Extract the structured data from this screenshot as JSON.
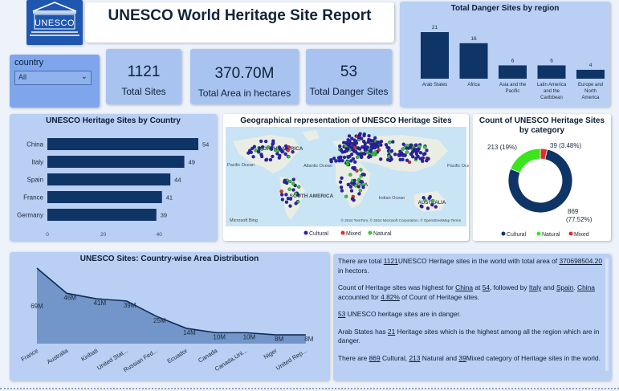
{
  "header": {
    "title": "UNESCO World Heritage Site Report",
    "logo_text": "UNESCO"
  },
  "filter": {
    "label": "country",
    "value": "All"
  },
  "kpis": [
    {
      "value": "1121",
      "label": "Total Sites"
    },
    {
      "value": "370.70M",
      "label": "Total Area in hectares"
    },
    {
      "value": "53",
      "label": "Total Danger Sites"
    }
  ],
  "danger_by_region": {
    "title": "Total Danger Sites by region",
    "categories": [
      "Arab States",
      "Africa",
      "Asia and the Pacific",
      "Latin America and the Caribbean",
      "Europe and North America"
    ],
    "cat_lines": [
      [
        "Arab States"
      ],
      [
        "Africa"
      ],
      [
        "Asia and the",
        "Pacific"
      ],
      [
        "Latin America",
        "and the",
        "Caribbean"
      ],
      [
        "Europe and",
        "North",
        "America"
      ]
    ],
    "values": [
      21,
      16,
      6,
      6,
      4
    ]
  },
  "by_country": {
    "title": "UNESCO Heritage Sites by Country",
    "categories": [
      "China",
      "Italy",
      "Spain",
      "France",
      "Germany"
    ],
    "values": [
      54,
      49,
      44,
      41,
      39
    ],
    "ticks": [
      "0",
      "20",
      "40"
    ]
  },
  "map": {
    "title": "Geographical representation of UNESCO Heritage Sites",
    "labels": [
      "NORTH AMERICA",
      "ASIA",
      "Pacific Ocean",
      "Atlantic Ocean",
      "SOUTH AMERICA",
      "AFRICA",
      "Indian Ocean",
      "AUSTRALIA",
      "Pacific Ocean"
    ],
    "attribution": "© 2024 TomTom, © 2024 Microsoft Corporation, © OpenStreetMap  Terms",
    "brand": "Microsoft Bing",
    "legend": [
      "Cultural",
      "Mixed",
      "Natural"
    ],
    "legend_colors": [
      "#2a1fb4",
      "#e8282b",
      "#2fce2f"
    ]
  },
  "by_category": {
    "title": "Count of UNESCO Heritage Sites by category",
    "slices": [
      {
        "name": "Cultural",
        "value": 869,
        "label": "869",
        "pct": "(77.52%)",
        "color": "#0f3466"
      },
      {
        "name": "Natural",
        "value": 213,
        "label": "213 (19%)",
        "color": "#39e61c"
      },
      {
        "name": "Mixed",
        "value": 39,
        "label": "39 (3.48%)",
        "color": "#e8282b"
      }
    ],
    "legend": [
      "Cultural",
      "Natural",
      "Mixed"
    ]
  },
  "area_dist": {
    "title": "UNESCO Sites: Country-wise Area Distribution",
    "categories": [
      "France",
      "Australia",
      "Kiribati",
      "United Stat...",
      "Russian Fed...",
      "Ecuador",
      "Canada",
      "Canada,Uni...",
      "Niger",
      "United Rep..."
    ],
    "values": [
      69,
      46,
      41,
      39,
      25,
      14,
      10,
      10,
      8,
      8
    ],
    "labels": [
      "69M",
      "46M",
      "41M",
      "39M",
      "25M",
      "14M",
      "10M",
      "10M",
      "8M",
      "8M"
    ],
    "unit": "M"
  },
  "insights": [
    "There are total 1121UNESCO Heritage sites in the world with total area of 370698504.20 in hectors.",
    "Count of Heritage sites was highest for China at 54, followed by Italy and Spain. China accounted for 4.82% of Count of Heritage sites.",
    "53 UNESCO heritage sites are in danger.",
    "Arab States has 21 Heritage sites which is the highest  among all the region which are in danger.",
    "There are 869 Cultural, 213 Natural and 39Mixed category of Heritage sites in the world."
  ],
  "chart_data": [
    {
      "type": "bar",
      "title": "Total Danger Sites by region",
      "categories": [
        "Arab States",
        "Africa",
        "Asia and the Pacific",
        "Latin America and the Caribbean",
        "Europe and North America"
      ],
      "values": [
        21,
        16,
        6,
        6,
        4
      ]
    },
    {
      "type": "bar",
      "title": "UNESCO Heritage Sites by Country",
      "categories": [
        "China",
        "Italy",
        "Spain",
        "France",
        "Germany"
      ],
      "values": [
        54,
        49,
        44,
        41,
        39
      ],
      "xlim": [
        0,
        54
      ]
    },
    {
      "type": "pie",
      "title": "Count of UNESCO Heritage Sites by category",
      "categories": [
        "Cultural",
        "Natural",
        "Mixed"
      ],
      "values": [
        869,
        213,
        39
      ]
    },
    {
      "type": "area",
      "title": "UNESCO Sites: Country-wise Area Distribution",
      "categories": [
        "France",
        "Australia",
        "Kiribati",
        "United Stat...",
        "Russian Fed...",
        "Ecuador",
        "Canada",
        "Canada,Uni...",
        "Niger",
        "United Rep..."
      ],
      "values": [
        69,
        46,
        41,
        39,
        25,
        14,
        10,
        10,
        8,
        8
      ]
    }
  ]
}
